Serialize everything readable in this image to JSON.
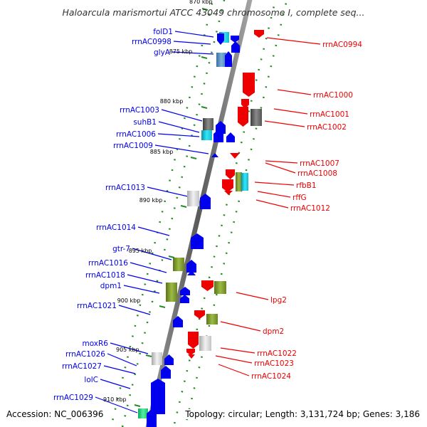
{
  "header": {
    "title": "Haloarcula marismortui ATCC 43049 chromosome I, complete seq..."
  },
  "footer": {
    "accession": "Accession: NC_006396",
    "summary": "Topology: circular; Length: 3,131,724 bp; Genes: 3,186"
  },
  "colors": {
    "forward_strand": "#0000ee",
    "reverse_strand": "#ee0000",
    "dotted_track": "#228b22",
    "axis": "#777777"
  },
  "scale": {
    "tick_labels": [
      "870 kbp",
      "875 kbp",
      "880 kbp",
      "885 kbp",
      "890 kbp",
      "895 kbp",
      "900 kbp",
      "905 kbp",
      "910 kbp"
    ]
  },
  "forward_genes": [
    "folD1",
    "rrnAC0998",
    "glyA",
    "rrnAC1003",
    "suhB1",
    "rrnAC1006",
    "rrnAC1009",
    "rrnAC1013",
    "rrnAC1014",
    "gtr-7",
    "rrnAC1016",
    "rrnAC1018",
    "dpm1",
    "rrnAC1021",
    "moxR6",
    "rrnAC1026",
    "rrnAC1027",
    "lolC",
    "rrnAC1029"
  ],
  "reverse_genes": [
    "rrnAC0994",
    "rrnAC1000",
    "rrnAC1001",
    "rrnAC1002",
    "rrnAC1007",
    "rrnAC1008",
    "rfbB1",
    "rffG",
    "rrnAC1012",
    "lpg2",
    "dpm2",
    "rrnAC1022",
    "rrnAC1023",
    "rrnAC1024"
  ]
}
